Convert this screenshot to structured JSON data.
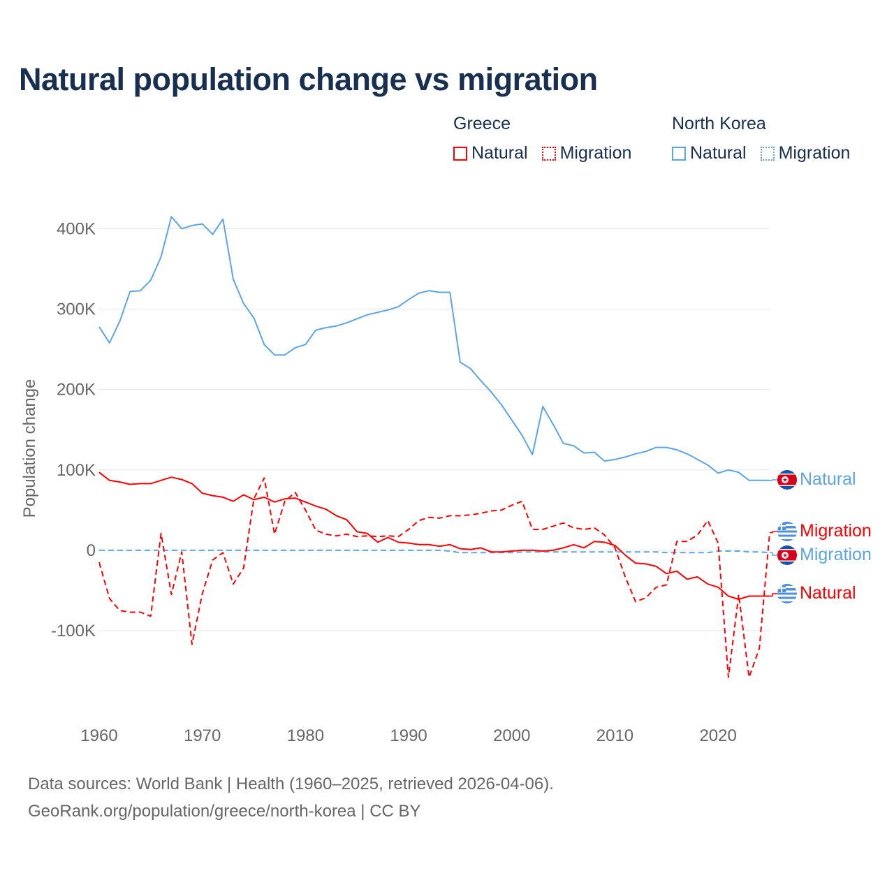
{
  "title": "Natural population change vs migration",
  "legend": {
    "groups": [
      {
        "name": "Greece",
        "items": [
          {
            "label": "Natural",
            "color": "#ff0000",
            "style": "solid"
          },
          {
            "label": "Migration",
            "color": "#ff0000",
            "style": "dotted"
          }
        ]
      },
      {
        "name": "North Korea",
        "items": [
          {
            "label": "Natural",
            "color": "#5aa5ea",
            "style": "solid"
          },
          {
            "label": "Migration",
            "color": "#5aa5ea",
            "style": "dotted"
          }
        ]
      }
    ]
  },
  "end_labels": {
    "nk_natural": "Natural",
    "gr_migration": "Migration",
    "nk_migration": "Migration",
    "gr_natural": "Natural"
  },
  "footer": {
    "line1": "Data sources: World Bank | Health (1960–2025, retrieved 2026-04-06).",
    "line2": "GeoRank.org/population/greece/north-korea | CC BY"
  },
  "chart_data": {
    "type": "line",
    "title": "Natural population change vs migration",
    "xlabel": "",
    "ylabel": "Population change",
    "xlim": [
      1960,
      2025
    ],
    "ylim": [
      -193,
      450
    ],
    "y_unit": "thousands",
    "xticks": [
      1960,
      1970,
      1980,
      1990,
      2000,
      2010,
      2020
    ],
    "yticks": [
      {
        "v": -100,
        "label": "-100K"
      },
      {
        "v": 0,
        "label": "0"
      },
      {
        "v": 100,
        "label": "100K"
      },
      {
        "v": 200,
        "label": "200K"
      },
      {
        "v": 300,
        "label": "300K"
      },
      {
        "v": 400,
        "label": "400K"
      }
    ],
    "grid": true,
    "x_start": 1960,
    "series": [
      {
        "name": "North Korea Natural",
        "color": "#5aa5ea",
        "dash": "",
        "values": [
          278,
          258,
          285,
          322,
          323,
          336,
          365,
          415,
          400,
          404,
          406,
          393,
          412,
          337,
          307,
          289,
          256,
          243,
          243,
          252,
          256,
          274,
          277,
          279,
          283,
          288,
          293,
          296,
          299,
          303,
          312,
          320,
          323,
          321,
          321,
          234,
          226,
          211,
          197,
          181,
          162,
          143,
          119,
          179,
          157,
          133,
          130,
          121,
          122,
          111,
          113,
          116,
          120,
          123,
          128,
          128,
          125,
          120,
          113,
          106,
          96,
          100,
          97,
          87,
          87,
          87
        ]
      },
      {
        "name": "North Korea Migration",
        "color": "#5aa5ea",
        "dash": "8,5",
        "values": [
          0,
          0,
          0,
          0,
          0,
          0,
          0,
          0,
          0,
          0,
          0,
          0,
          0,
          0,
          0,
          0,
          0,
          0,
          0,
          0,
          0,
          0,
          0,
          0,
          0,
          0,
          0,
          0,
          0,
          0,
          0,
          0,
          0,
          0,
          -1,
          -3,
          -3,
          -3,
          -3,
          -3,
          -3,
          -2,
          -2,
          -2,
          -2,
          -2,
          -2,
          -2,
          -2,
          -2,
          -2,
          -2,
          -2,
          -2,
          -2,
          -3,
          -3,
          -3,
          -3,
          -3,
          -1,
          -1,
          -1,
          -2,
          -2,
          -3
        ]
      },
      {
        "name": "Greece Natural",
        "color": "#ff0000",
        "dash": "",
        "values": [
          97,
          87,
          85,
          82,
          83,
          83,
          87,
          91,
          88,
          83,
          71,
          68,
          66,
          61,
          69,
          63,
          66,
          60,
          64,
          65,
          60,
          55,
          51,
          43,
          38,
          23,
          21,
          10,
          16,
          10,
          9,
          7,
          7,
          5,
          7,
          2,
          1,
          3,
          -2,
          -2,
          -1,
          0,
          0,
          -1,
          0,
          3,
          7,
          3,
          11,
          10,
          6,
          -6,
          -16,
          -17,
          -20,
          -29,
          -26,
          -36,
          -33,
          -42,
          -46,
          -57,
          -61,
          -57,
          -57,
          -57
        ]
      },
      {
        "name": "Greece Migration",
        "color": "#ff0000",
        "dash": "8,5",
        "values": [
          -15,
          -60,
          -75,
          -77,
          -77,
          -82,
          21,
          -55,
          -2,
          -117,
          -54,
          -12,
          -3,
          -42,
          -22,
          64,
          90,
          20,
          61,
          72,
          50,
          25,
          20,
          18,
          20,
          17,
          18,
          17,
          18,
          17,
          26,
          37,
          41,
          40,
          43,
          43,
          44,
          46,
          49,
          50,
          56,
          61,
          26,
          26,
          30,
          34,
          28,
          26,
          28,
          19,
          3,
          -33,
          -64,
          -59,
          -46,
          -43,
          11,
          11,
          19,
          37,
          9,
          -158,
          -55,
          -158,
          -122,
          22
        ]
      }
    ]
  }
}
